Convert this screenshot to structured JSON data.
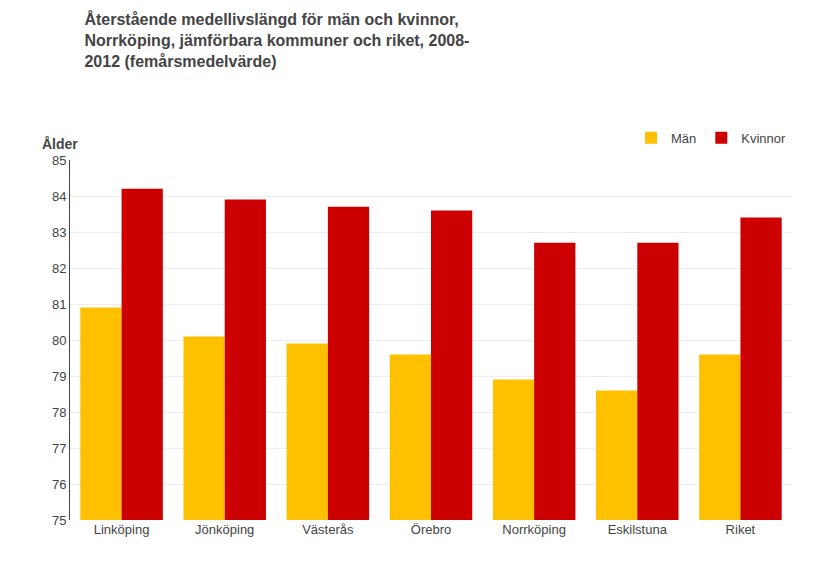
{
  "chart_data": {
    "type": "bar",
    "title": "Återstående medellivslängd för män och kvinnor,\nNorrköping, jämförbara kommuner och riket, 2008-\n2012 (femårsmedelvärde)",
    "ylabel": "Ålder",
    "categories": [
      "Linköping",
      "Jönköping",
      "Västerås",
      "Örebro",
      "Norrköping",
      "Eskilstuna",
      "Riket"
    ],
    "series": [
      {
        "name": "Män",
        "color": "#FFC000",
        "values": [
          80.9,
          80.1,
          79.9,
          79.6,
          78.9,
          78.6,
          79.6
        ]
      },
      {
        "name": "Kvinnor",
        "color": "#CC0000",
        "values": [
          84.2,
          83.9,
          83.7,
          83.6,
          82.7,
          82.7,
          83.4
        ]
      }
    ],
    "ylim": [
      75,
      85
    ],
    "yticks": [
      75,
      76,
      77,
      78,
      79,
      80,
      81,
      82,
      83,
      84,
      85
    ],
    "grid": true,
    "legend": "upper right"
  }
}
